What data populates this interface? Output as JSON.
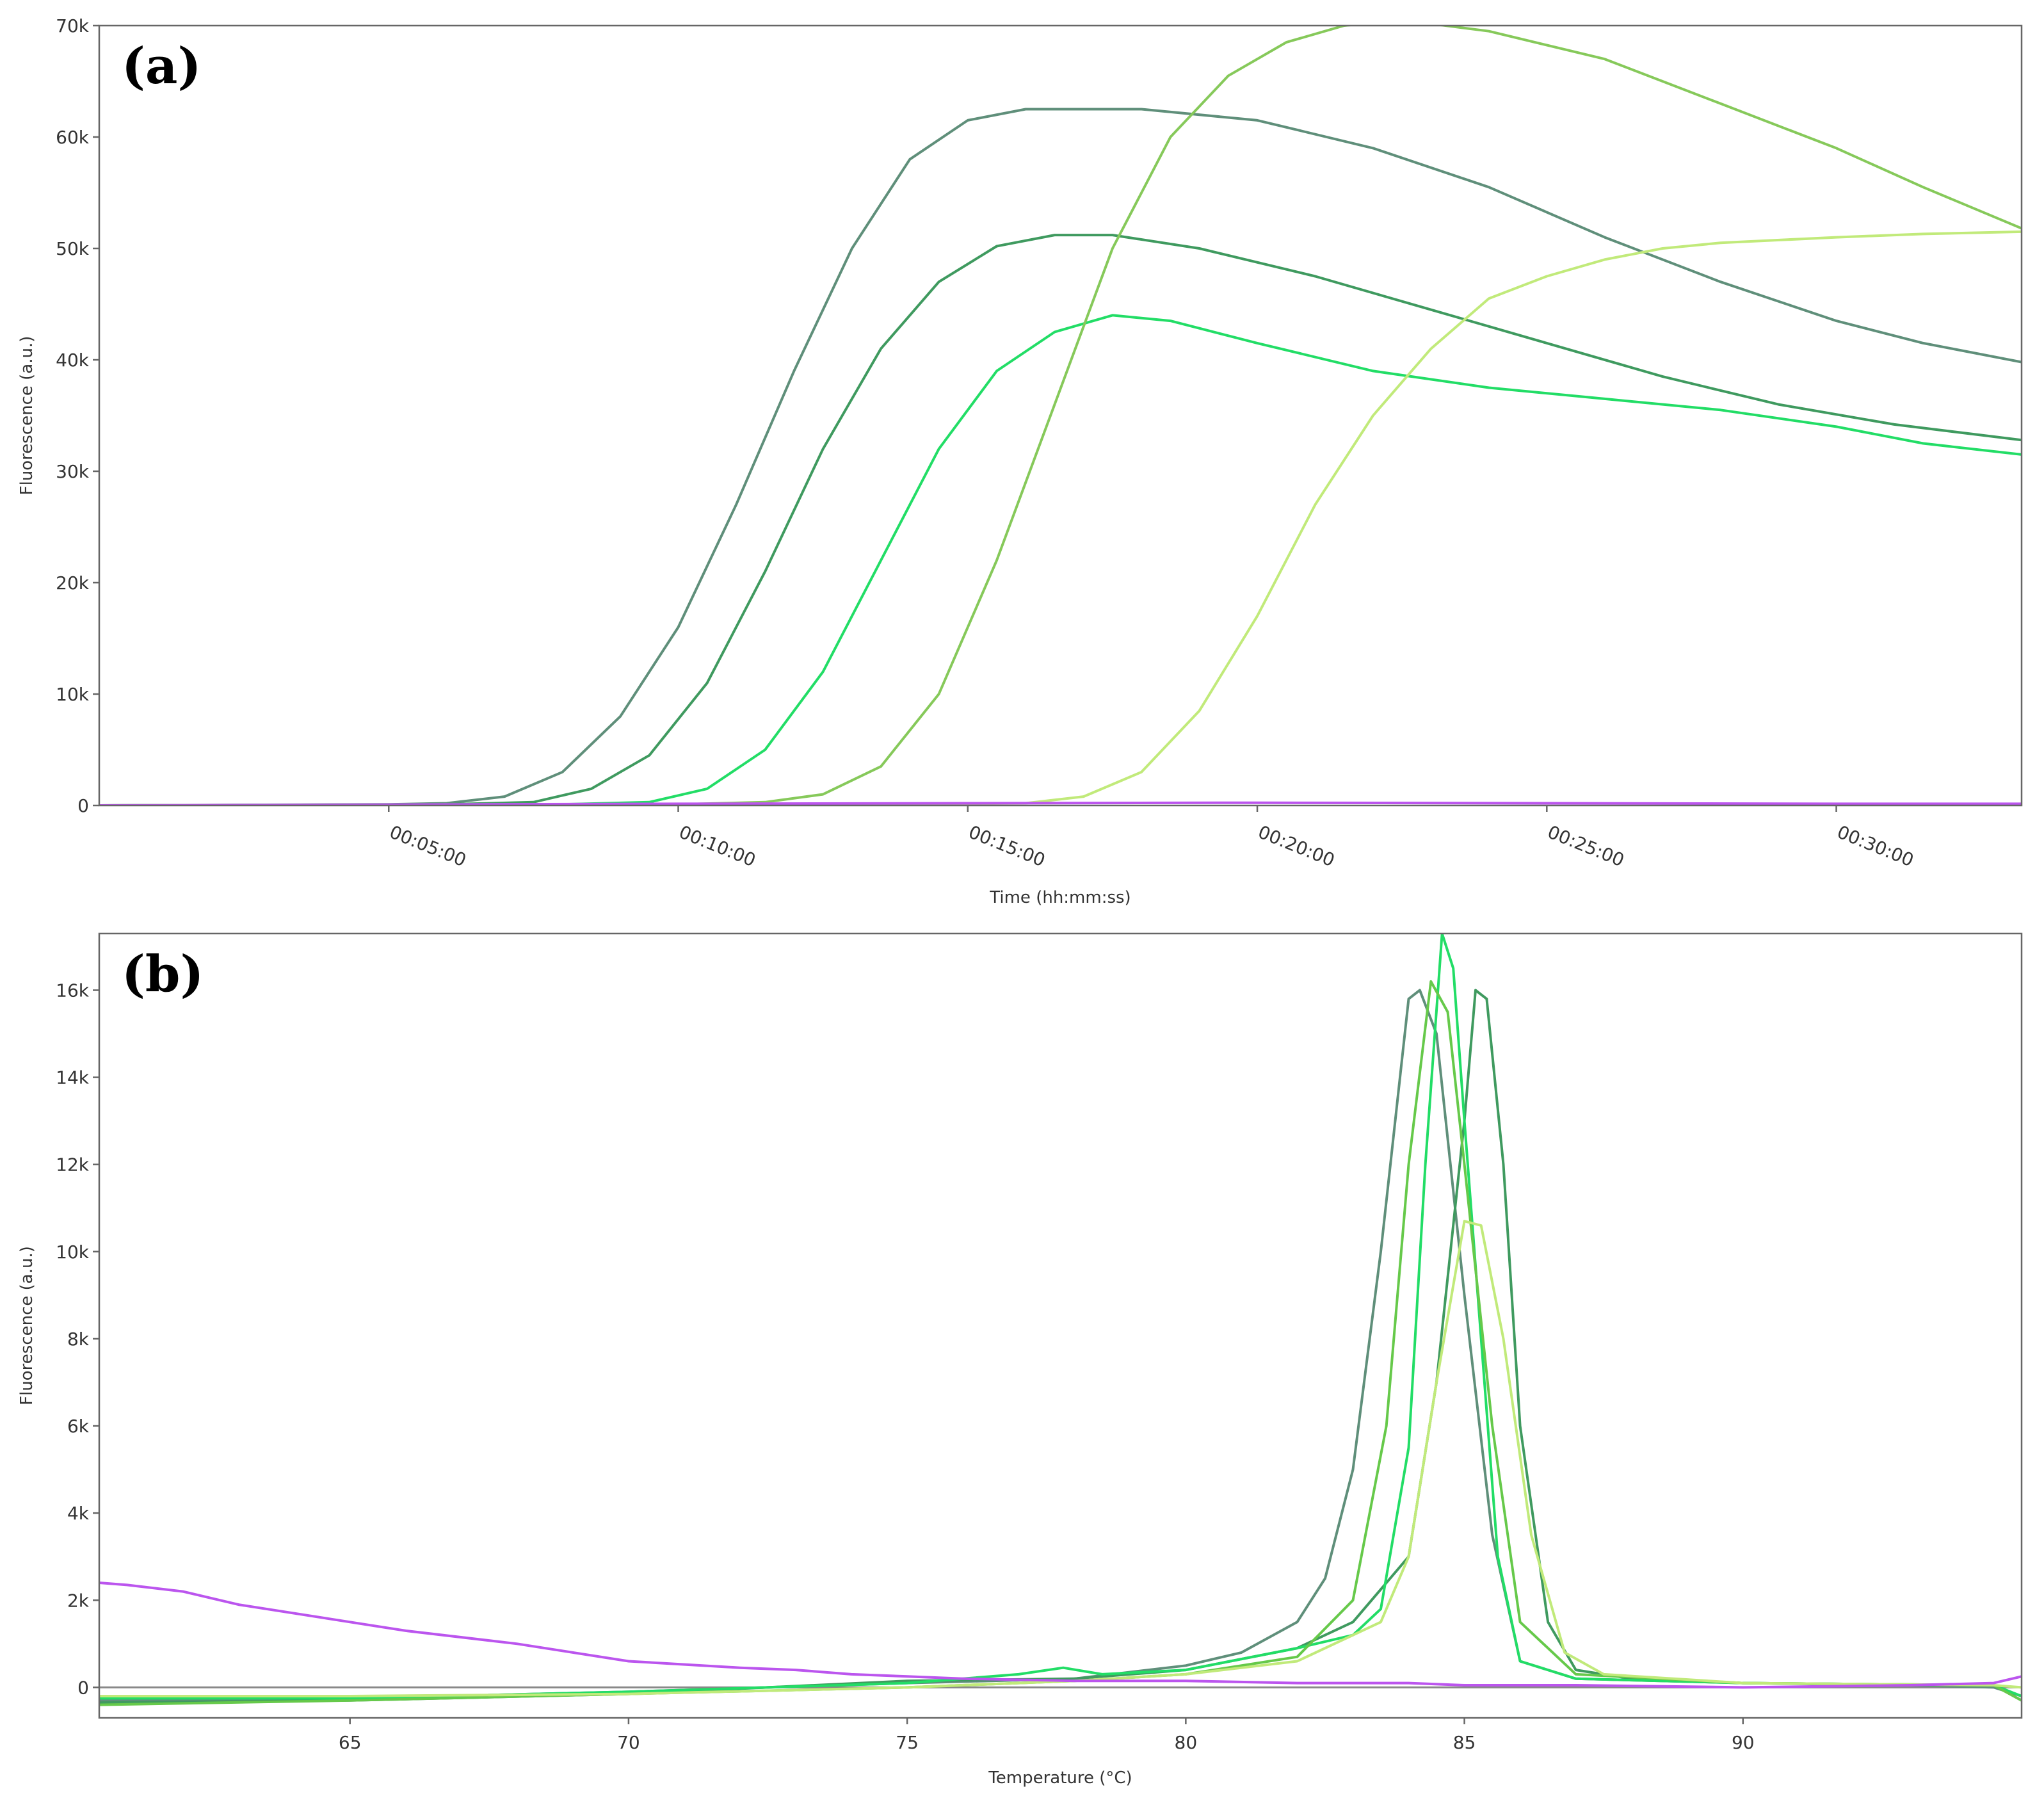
{
  "chart_data": [
    {
      "type": "line",
      "panel_label": "(a)",
      "xlabel": "Time (hh:mm:ss)",
      "ylabel": "Fluorescence (a.u.)",
      "xlim": [
        0,
        33.2
      ],
      "ylim": [
        0,
        70000
      ],
      "x_ticks": [
        {
          "value": 5,
          "label": "00:05:00"
        },
        {
          "value": 10,
          "label": "00:10:00"
        },
        {
          "value": 15,
          "label": "00:15:00"
        },
        {
          "value": 20,
          "label": "00:20:00"
        },
        {
          "value": 25,
          "label": "00:25:00"
        },
        {
          "value": 30,
          "label": "00:30:00"
        }
      ],
      "y_ticks": [
        {
          "value": 0,
          "label": "0"
        },
        {
          "value": 10000,
          "label": "10k"
        },
        {
          "value": 20000,
          "label": "20k"
        },
        {
          "value": 30000,
          "label": "30k"
        },
        {
          "value": 40000,
          "label": "40k"
        },
        {
          "value": 50000,
          "label": "50k"
        },
        {
          "value": 60000,
          "label": "60k"
        },
        {
          "value": 70000,
          "label": "70k"
        }
      ],
      "grid": false,
      "series": [
        {
          "color": "#5f8f7a",
          "points": [
            [
              0,
              0
            ],
            [
              5,
              100
            ],
            [
              6,
              200
            ],
            [
              7,
              800
            ],
            [
              8,
              3000
            ],
            [
              9,
              8000
            ],
            [
              10,
              16000
            ],
            [
              11,
              27000
            ],
            [
              12,
              39000
            ],
            [
              13,
              50000
            ],
            [
              14,
              58000
            ],
            [
              15,
              61500
            ],
            [
              16,
              62500
            ],
            [
              18,
              62500
            ],
            [
              20,
              61500
            ],
            [
              22,
              59000
            ],
            [
              24,
              55500
            ],
            [
              26,
              51000
            ],
            [
              28,
              47000
            ],
            [
              30,
              43500
            ],
            [
              31.5,
              41500
            ],
            [
              33.2,
              39800
            ]
          ]
        },
        {
          "color": "#3f9a5f",
          "points": [
            [
              0,
              0
            ],
            [
              6,
              100
            ],
            [
              7.5,
              300
            ],
            [
              8.5,
              1500
            ],
            [
              9.5,
              4500
            ],
            [
              10.5,
              11000
            ],
            [
              11.5,
              21000
            ],
            [
              12.5,
              32000
            ],
            [
              13.5,
              41000
            ],
            [
              14.5,
              47000
            ],
            [
              15.5,
              50200
            ],
            [
              16.5,
              51200
            ],
            [
              17.5,
              51200
            ],
            [
              19,
              50000
            ],
            [
              21,
              47500
            ],
            [
              23,
              44500
            ],
            [
              25,
              41500
            ],
            [
              27,
              38500
            ],
            [
              29,
              36000
            ],
            [
              31,
              34200
            ],
            [
              33.2,
              32800
            ]
          ]
        },
        {
          "color": "#22dd66",
          "points": [
            [
              0,
              0
            ],
            [
              8,
              100
            ],
            [
              9.5,
              300
            ],
            [
              10.5,
              1500
            ],
            [
              11.5,
              5000
            ],
            [
              12.5,
              12000
            ],
            [
              13.5,
              22000
            ],
            [
              14.5,
              32000
            ],
            [
              15.5,
              39000
            ],
            [
              16.5,
              42500
            ],
            [
              17.5,
              44000
            ],
            [
              18.5,
              43500
            ],
            [
              20,
              41500
            ],
            [
              22,
              39000
            ],
            [
              24,
              37500
            ],
            [
              26,
              36500
            ],
            [
              28,
              35500
            ],
            [
              30,
              34000
            ],
            [
              31.5,
              32500
            ],
            [
              33.2,
              31500
            ]
          ]
        },
        {
          "color": "#86c95a",
          "points": [
            [
              0,
              0
            ],
            [
              10,
              100
            ],
            [
              11.5,
              300
            ],
            [
              12.5,
              1000
            ],
            [
              13.5,
              3500
            ],
            [
              14.5,
              10000
            ],
            [
              15.5,
              22000
            ],
            [
              16.5,
              36000
            ],
            [
              17.5,
              50000
            ],
            [
              18.5,
              60000
            ],
            [
              19.5,
              65500
            ],
            [
              20.5,
              68500
            ],
            [
              21.5,
              70000
            ],
            [
              22.5,
              70500
            ],
            [
              24,
              69500
            ],
            [
              26,
              67000
            ],
            [
              28,
              63000
            ],
            [
              30,
              59000
            ],
            [
              31.5,
              55500
            ],
            [
              33.2,
              51800
            ]
          ]
        },
        {
          "color": "#c1ea7a",
          "points": [
            [
              0,
              0
            ],
            [
              14,
              100
            ],
            [
              16,
              200
            ],
            [
              17,
              800
            ],
            [
              18,
              3000
            ],
            [
              19,
              8500
            ],
            [
              20,
              17000
            ],
            [
              21,
              27000
            ],
            [
              22,
              35000
            ],
            [
              23,
              41000
            ],
            [
              24,
              45500
            ],
            [
              25,
              47500
            ],
            [
              26,
              49000
            ],
            [
              27,
              50000
            ],
            [
              28,
              50500
            ],
            [
              30,
              51000
            ],
            [
              31.5,
              51300
            ],
            [
              33.2,
              51500
            ]
          ]
        },
        {
          "color": "#bb55ee",
          "points": [
            [
              0,
              0
            ],
            [
              10,
              150
            ],
            [
              15,
              200
            ],
            [
              20,
              250
            ],
            [
              25,
              200
            ],
            [
              30,
              150
            ],
            [
              33.2,
              150
            ]
          ]
        }
      ]
    },
    {
      "type": "line",
      "panel_label": "(b)",
      "xlabel": "Temperature (°C)",
      "ylabel": "Fluorescence (a.u.)",
      "xlim": [
        60.5,
        95
      ],
      "ylim": [
        -700,
        17300
      ],
      "x_ticks": [
        {
          "value": 65,
          "label": "65"
        },
        {
          "value": 70,
          "label": "70"
        },
        {
          "value": 75,
          "label": "75"
        },
        {
          "value": 80,
          "label": "80"
        },
        {
          "value": 85,
          "label": "85"
        },
        {
          "value": 90,
          "label": "90"
        }
      ],
      "y_ticks": [
        {
          "value": 0,
          "label": "0"
        },
        {
          "value": 2000,
          "label": "2k"
        },
        {
          "value": 4000,
          "label": "4k"
        },
        {
          "value": 6000,
          "label": "6k"
        },
        {
          "value": 8000,
          "label": "8k"
        },
        {
          "value": 10000,
          "label": "10k"
        },
        {
          "value": 12000,
          "label": "12k"
        },
        {
          "value": 14000,
          "label": "14k"
        },
        {
          "value": 16000,
          "label": "16k"
        }
      ],
      "grid": false,
      "zero_line": true,
      "series": [
        {
          "color": "#5f8f7a",
          "points": [
            [
              60.5,
              -300
            ],
            [
              65,
              -250
            ],
            [
              70,
              -100
            ],
            [
              75,
              100
            ],
            [
              78,
              200
            ],
            [
              80,
              500
            ],
            [
              81,
              800
            ],
            [
              82,
              1500
            ],
            [
              82.5,
              2500
            ],
            [
              83,
              5000
            ],
            [
              83.5,
              10000
            ],
            [
              84,
              15800
            ],
            [
              84.2,
              16000
            ],
            [
              84.5,
              15000
            ],
            [
              85,
              9000
            ],
            [
              85.5,
              3500
            ],
            [
              86,
              600
            ],
            [
              87,
              200
            ],
            [
              90,
              100
            ],
            [
              93,
              50
            ],
            [
              94.5,
              0
            ],
            [
              95,
              -200
            ]
          ]
        },
        {
          "color": "#3f9a5f",
          "points": [
            [
              60.5,
              -350
            ],
            [
              65,
              -300
            ],
            [
              70,
              -150
            ],
            [
              75,
              150
            ],
            [
              78,
              200
            ],
            [
              80,
              400
            ],
            [
              82,
              900
            ],
            [
              83,
              1500
            ],
            [
              84,
              3000
            ],
            [
              84.5,
              7000
            ],
            [
              85,
              13000
            ],
            [
              85.2,
              16000
            ],
            [
              85.4,
              15800
            ],
            [
              85.7,
              12000
            ],
            [
              86,
              6000
            ],
            [
              86.5,
              1500
            ],
            [
              87,
              400
            ],
            [
              88,
              200
            ],
            [
              90,
              100
            ],
            [
              94.5,
              50
            ],
            [
              95,
              -300
            ]
          ]
        },
        {
          "color": "#22dd66",
          "points": [
            [
              60.5,
              -250
            ],
            [
              65,
              -250
            ],
            [
              70,
              -100
            ],
            [
              75,
              100
            ],
            [
              77,
              300
            ],
            [
              77.8,
              450
            ],
            [
              78.5,
              300
            ],
            [
              80,
              400
            ],
            [
              82,
              900
            ],
            [
              83,
              1200
            ],
            [
              83.5,
              1800
            ],
            [
              84,
              5500
            ],
            [
              84.3,
              12000
            ],
            [
              84.6,
              17300
            ],
            [
              84.8,
              16500
            ],
            [
              85,
              13000
            ],
            [
              85.3,
              8000
            ],
            [
              85.6,
              3000
            ],
            [
              86,
              600
            ],
            [
              87,
              200
            ],
            [
              90,
              100
            ],
            [
              94.5,
              50
            ],
            [
              95,
              -200
            ]
          ]
        },
        {
          "color": "#66c94a",
          "points": [
            [
              60.5,
              -400
            ],
            [
              65,
              -300
            ],
            [
              70,
              -150
            ],
            [
              75,
              0
            ],
            [
              78,
              150
            ],
            [
              80,
              300
            ],
            [
              82,
              700
            ],
            [
              83,
              2000
            ],
            [
              83.6,
              6000
            ],
            [
              84,
              12000
            ],
            [
              84.4,
              16200
            ],
            [
              84.7,
              15500
            ],
            [
              85,
              12000
            ],
            [
              85.5,
              6000
            ],
            [
              86,
              1500
            ],
            [
              87,
              300
            ],
            [
              90,
              100
            ],
            [
              94.5,
              50
            ],
            [
              95,
              -300
            ]
          ]
        },
        {
          "color": "#c1ea7a",
          "points": [
            [
              60.5,
              -200
            ],
            [
              65,
              -200
            ],
            [
              70,
              -150
            ],
            [
              75,
              0
            ],
            [
              78,
              150
            ],
            [
              80,
              300
            ],
            [
              82,
              600
            ],
            [
              83.5,
              1500
            ],
            [
              84,
              3000
            ],
            [
              84.5,
              7000
            ],
            [
              85,
              10700
            ],
            [
              85.3,
              10600
            ],
            [
              85.7,
              8000
            ],
            [
              86.2,
              3500
            ],
            [
              86.8,
              800
            ],
            [
              87.5,
              300
            ],
            [
              90,
              100
            ],
            [
              94.5,
              50
            ],
            [
              95,
              0
            ]
          ]
        },
        {
          "color": "#bb55ee",
          "points": [
            [
              60.5,
              2400
            ],
            [
              61,
              2350
            ],
            [
              62,
              2200
            ],
            [
              63,
              1900
            ],
            [
              65,
              1500
            ],
            [
              66,
              1300
            ],
            [
              68,
              1000
            ],
            [
              70,
              600
            ],
            [
              72,
              450
            ],
            [
              73,
              400
            ],
            [
              74,
              300
            ],
            [
              75,
              250
            ],
            [
              76,
              200
            ],
            [
              78,
              150
            ],
            [
              80,
              150
            ],
            [
              82,
              100
            ],
            [
              84,
              100
            ],
            [
              85,
              50
            ],
            [
              87,
              50
            ],
            [
              90,
              0
            ],
            [
              93,
              50
            ],
            [
              94.5,
              100
            ],
            [
              95,
              250
            ]
          ]
        }
      ]
    }
  ]
}
